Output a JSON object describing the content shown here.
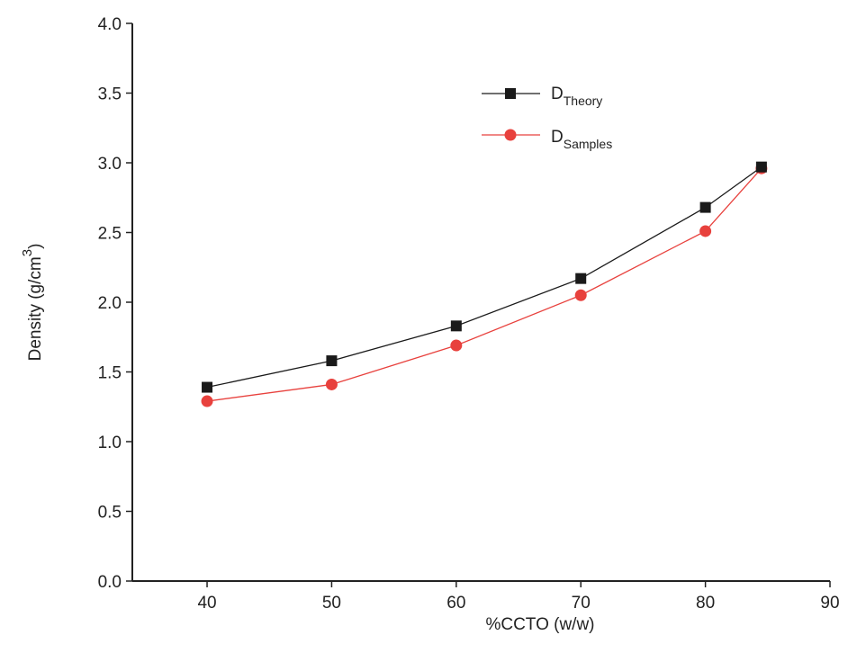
{
  "chart_data": {
    "type": "line",
    "xlabel": "%CCTO (w/w)",
    "ylabel_main": "Density (g/cm",
    "ylabel_sup": "3",
    "ylabel_close": ")",
    "xlim": [
      34,
      90
    ],
    "ylim": [
      0.0,
      4.0
    ],
    "x_ticks": [
      40,
      50,
      60,
      70,
      80,
      90
    ],
    "x_tick_labels": [
      "40",
      "50",
      "60",
      "70",
      "80",
      "90"
    ],
    "y_ticks": [
      0.0,
      0.5,
      1.0,
      1.5,
      2.0,
      2.5,
      3.0,
      3.5,
      4.0
    ],
    "y_tick_labels": [
      "0.0",
      "0.5",
      "1.0",
      "1.5",
      "2.0",
      "2.5",
      "3.0",
      "3.5",
      "4.0"
    ],
    "grid": false,
    "legend_position": "top-right",
    "series": [
      {
        "name_main": "D",
        "name_sub": "Theory",
        "marker": "square",
        "color": "#1a1a1a",
        "x": [
          40,
          50,
          60,
          70,
          80,
          84.5
        ],
        "values": [
          1.39,
          1.58,
          1.83,
          2.17,
          2.68,
          2.97
        ]
      },
      {
        "name_main": "D",
        "name_sub": "Samples",
        "marker": "circle",
        "color": "#e8413d",
        "x": [
          40,
          50,
          60,
          70,
          80,
          84.5
        ],
        "values": [
          1.29,
          1.41,
          1.69,
          2.05,
          2.51,
          2.96
        ]
      }
    ]
  }
}
